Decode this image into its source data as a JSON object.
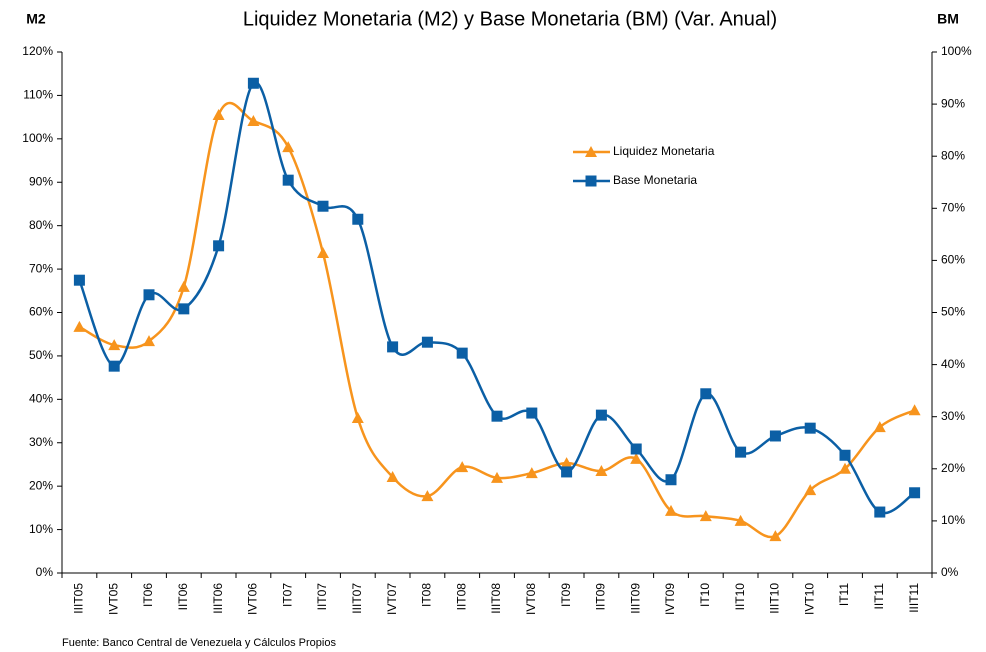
{
  "chart_data": {
    "type": "line",
    "title": "Liquidez Monetaria (M2) y Base Monetaria (BM) (Var. Anual)",
    "y_label": "M2",
    "y2_label": "BM",
    "source": "Fuente: Banco Central de Venezuela y Cálculos Propios",
    "categories": [
      "IIIT05",
      "IVT05",
      "IT06",
      "IIT06",
      "IIIT06",
      "IVT06",
      "IT07",
      "IIT07",
      "IIIT07",
      "IVT07",
      "IT08",
      "IIT08",
      "IIIT08",
      "IVT08",
      "IT09",
      "IIT09",
      "IIIT09",
      "IVT09",
      "IT10",
      "IIT10",
      "IIIT10",
      "IVT10",
      "IT11",
      "IIT11",
      "IIIT11"
    ],
    "series": [
      {
        "name": "Liquidez Monetaria",
        "color": "#f7941d",
        "marker": "triangle",
        "axis": "y",
        "values": [
          56.7,
          52.5,
          53.4,
          65.9,
          105.5,
          104.1,
          98.1,
          73.7,
          35.7,
          22.1,
          17.7,
          24.4,
          21.9,
          23.0,
          25.3,
          23.5,
          26.3,
          14.3,
          13.1,
          12.0,
          8.5,
          19.1,
          24.0,
          33.6,
          37.5
        ]
      },
      {
        "name": "Base Monetaria",
        "color": "#0b5fa5",
        "marker": "square",
        "axis": "y2",
        "values": [
          56.2,
          39.7,
          53.4,
          50.7,
          62.8,
          94.0,
          75.4,
          70.4,
          67.9,
          43.4,
          44.3,
          42.2,
          30.1,
          30.7,
          19.4,
          30.3,
          23.8,
          17.9,
          34.4,
          23.2,
          26.3,
          27.8,
          22.6,
          11.7,
          15.4
        ]
      }
    ],
    "ylim": [
      0,
      120
    ],
    "yticks": [
      {
        "value": 0,
        "label": "0%"
      },
      {
        "value": 10,
        "label": "10%"
      },
      {
        "value": 20,
        "label": "20%"
      },
      {
        "value": 30,
        "label": "30%"
      },
      {
        "value": 40,
        "label": "40%"
      },
      {
        "value": 50,
        "label": "50%"
      },
      {
        "value": 60,
        "label": "60%"
      },
      {
        "value": 70,
        "label": "70%"
      },
      {
        "value": 80,
        "label": "80%"
      },
      {
        "value": 90,
        "label": "90%"
      },
      {
        "value": 100,
        "label": "100%"
      },
      {
        "value": 110,
        "label": "110%"
      },
      {
        "value": 120,
        "label": "120%"
      }
    ],
    "y2lim": [
      0,
      100
    ],
    "y2ticks": [
      {
        "value": 0,
        "label": "0%"
      },
      {
        "value": 10,
        "label": "10%"
      },
      {
        "value": 20,
        "label": "20%"
      },
      {
        "value": 30,
        "label": "30%"
      },
      {
        "value": 40,
        "label": "40%"
      },
      {
        "value": 50,
        "label": "50%"
      },
      {
        "value": 60,
        "label": "60%"
      },
      {
        "value": 70,
        "label": "70%"
      },
      {
        "value": 80,
        "label": "80%"
      },
      {
        "value": 90,
        "label": "90%"
      },
      {
        "value": 100,
        "label": "100%"
      }
    ],
    "smooth": true,
    "grid": false
  }
}
